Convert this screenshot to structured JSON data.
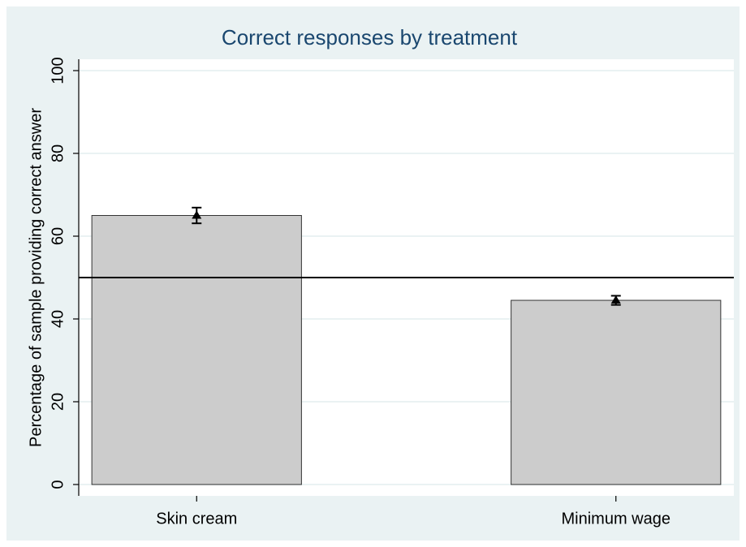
{
  "chart_data": {
    "type": "bar",
    "title": "Correct responses by treatment",
    "ylabel": "Percentage of sample providing correct answer",
    "categories": [
      "Skin cream",
      "Minimum wage"
    ],
    "values": [
      65,
      44.5
    ],
    "errors": [
      1.9,
      1.1
    ],
    "color": "#cccccc",
    "reference_line": 50,
    "ylim": [
      0,
      100
    ],
    "yticks": [
      0,
      20,
      40,
      60,
      80,
      100
    ],
    "grid": true
  }
}
